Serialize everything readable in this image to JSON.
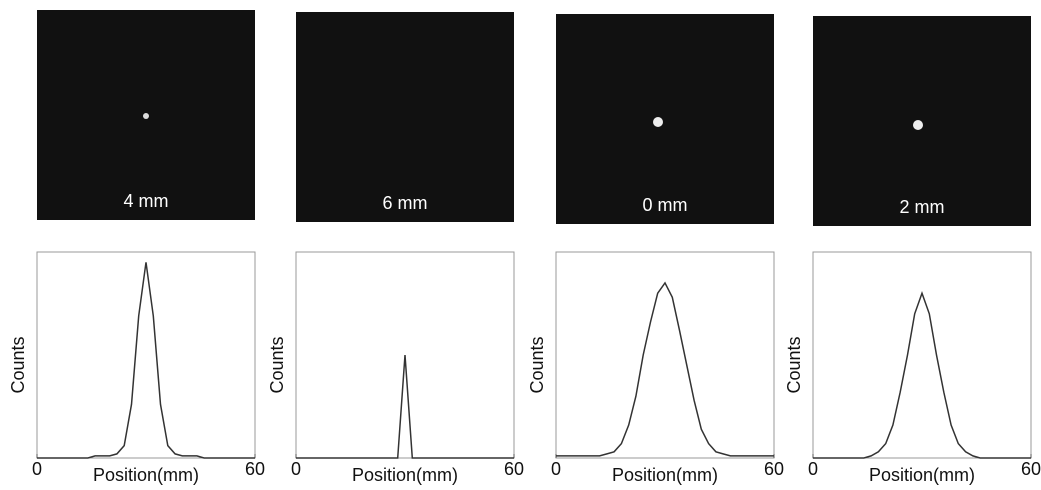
{
  "chart_data": [
    {
      "type": "line",
      "image_label": "4 mm",
      "xlabel": "Position(mm)",
      "ylabel": "Counts",
      "xlim": [
        0,
        60
      ],
      "xticks": [
        0,
        60
      ],
      "ylim": [
        0,
        1
      ],
      "color": "#333333",
      "x": [
        0,
        2,
        4,
        6,
        8,
        10,
        12,
        14,
        16,
        18,
        20,
        22,
        24,
        26,
        28,
        30,
        32,
        34,
        36,
        38,
        40,
        42,
        44,
        46,
        48,
        50,
        52,
        54,
        56,
        58,
        60
      ],
      "values": [
        0,
        0,
        0,
        0,
        0,
        0,
        0,
        0,
        0.01,
        0.01,
        0.01,
        0.02,
        0.06,
        0.26,
        0.69,
        0.95,
        0.69,
        0.26,
        0.06,
        0.02,
        0.01,
        0.01,
        0.01,
        0,
        0,
        0,
        0,
        0,
        0,
        0,
        0
      ]
    },
    {
      "type": "line",
      "image_label": "6 mm",
      "xlabel": "Position(mm)",
      "ylabel": "Counts",
      "xlim": [
        0,
        60
      ],
      "xticks": [
        0,
        60
      ],
      "ylim": [
        0,
        1
      ],
      "color": "#333333",
      "x": [
        0,
        2,
        4,
        6,
        8,
        10,
        12,
        14,
        16,
        18,
        20,
        22,
        24,
        26,
        28,
        30,
        32,
        34,
        36,
        38,
        40,
        42,
        44,
        46,
        48,
        50,
        52,
        54,
        56,
        58,
        60
      ],
      "values": [
        0,
        0,
        0,
        0,
        0,
        0,
        0,
        0,
        0,
        0,
        0,
        0,
        0,
        0,
        0,
        0.5,
        0,
        0,
        0,
        0,
        0,
        0,
        0,
        0,
        0,
        0,
        0,
        0,
        0,
        0,
        0
      ]
    },
    {
      "type": "line",
      "image_label": "0 mm",
      "xlabel": "Position(mm)",
      "ylabel": "Counts",
      "xlim": [
        0,
        60
      ],
      "xticks": [
        0,
        60
      ],
      "ylim": [
        0,
        1
      ],
      "color": "#333333",
      "x": [
        0,
        2,
        4,
        6,
        8,
        10,
        12,
        14,
        16,
        18,
        20,
        22,
        24,
        26,
        28,
        30,
        32,
        34,
        36,
        38,
        40,
        42,
        44,
        46,
        48,
        50,
        52,
        54,
        56,
        58,
        60
      ],
      "values": [
        0.01,
        0.01,
        0.01,
        0.01,
        0.01,
        0.01,
        0.01,
        0.02,
        0.03,
        0.07,
        0.16,
        0.3,
        0.5,
        0.66,
        0.8,
        0.85,
        0.78,
        0.62,
        0.45,
        0.28,
        0.14,
        0.07,
        0.03,
        0.02,
        0.01,
        0.01,
        0.01,
        0.01,
        0.01,
        0.01,
        0.01
      ]
    },
    {
      "type": "line",
      "image_label": "2 mm",
      "xlabel": "Position(mm)",
      "ylabel": "Counts",
      "xlim": [
        0,
        60
      ],
      "xticks": [
        0,
        60
      ],
      "ylim": [
        0,
        1
      ],
      "color": "#333333",
      "x": [
        0,
        2,
        4,
        6,
        8,
        10,
        12,
        14,
        16,
        18,
        20,
        22,
        24,
        26,
        28,
        30,
        32,
        34,
        36,
        38,
        40,
        42,
        44,
        46,
        48,
        50,
        52,
        54,
        56,
        58,
        60
      ],
      "values": [
        0,
        0,
        0,
        0,
        0,
        0,
        0,
        0,
        0.01,
        0.03,
        0.07,
        0.16,
        0.32,
        0.5,
        0.7,
        0.8,
        0.7,
        0.5,
        0.32,
        0.16,
        0.07,
        0.03,
        0.01,
        0,
        0,
        0,
        0,
        0,
        0,
        0,
        0
      ]
    }
  ]
}
